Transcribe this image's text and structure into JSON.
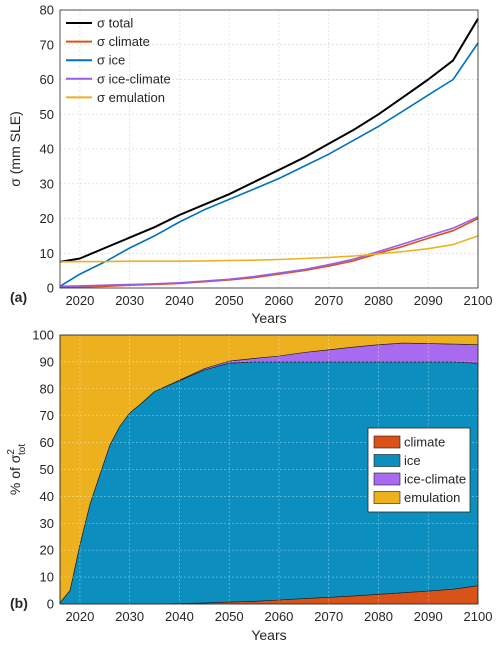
{
  "chart_data": [
    {
      "type": "line",
      "panel_label": "(a)",
      "xlabel": "Years",
      "ylabel": "σ (mm SLE)",
      "xlim": [
        2016,
        2100
      ],
      "ylim": [
        0,
        80
      ],
      "xticks": [
        2020,
        2030,
        2040,
        2050,
        2060,
        2070,
        2080,
        2090,
        2100
      ],
      "yticks": [
        0,
        10,
        20,
        30,
        40,
        50,
        60,
        70,
        80
      ],
      "grid": true,
      "legend_position": "top-left",
      "x": [
        2016,
        2020,
        2025,
        2030,
        2035,
        2040,
        2045,
        2050,
        2055,
        2060,
        2065,
        2070,
        2075,
        2080,
        2085,
        2090,
        2095,
        2100
      ],
      "series": [
        {
          "name": "σ total",
          "color": "#000000",
          "values": [
            7.5,
            8.5,
            11.5,
            14.5,
            17.5,
            21,
            24,
            27,
            30.5,
            34,
            37.5,
            41.5,
            45.5,
            50,
            55,
            60,
            65.5,
            77.5
          ]
        },
        {
          "name": "σ climate",
          "color": "#d95319",
          "values": [
            0.2,
            0.3,
            0.5,
            0.8,
            1.0,
            1.3,
            1.8,
            2.3,
            3.0,
            4.0,
            5.0,
            6.3,
            7.8,
            10.0,
            12.0,
            14.3,
            16.5,
            20.0
          ]
        },
        {
          "name": "σ ice",
          "color": "#0072bd",
          "values": [
            0.5,
            4.0,
            7.5,
            11.5,
            15.0,
            19.0,
            22.5,
            25.5,
            28.5,
            31.5,
            35.0,
            38.5,
            42.5,
            46.5,
            51.0,
            55.5,
            60.0,
            70.5
          ]
        },
        {
          "name": "σ ice-climate",
          "color": "#9b5de5",
          "values": [
            0.5,
            0.6,
            0.8,
            1.0,
            1.2,
            1.5,
            2.0,
            2.5,
            3.3,
            4.3,
            5.3,
            6.7,
            8.3,
            10.5,
            12.7,
            15.0,
            17.2,
            20.5
          ]
        },
        {
          "name": "σ emulation",
          "color": "#edb120",
          "values": [
            7.5,
            7.6,
            7.6,
            7.7,
            7.7,
            7.7,
            7.8,
            7.9,
            8.0,
            8.2,
            8.5,
            8.8,
            9.2,
            9.8,
            10.5,
            11.3,
            12.5,
            15.0
          ]
        }
      ]
    },
    {
      "type": "area",
      "stacked": true,
      "panel_label": "(b)",
      "xlabel": "Years",
      "ylabel": "% of σ²tot",
      "ylabel_main": "% of σ",
      "ylabel_sup": "2",
      "ylabel_sub": "tot",
      "xlim": [
        2016,
        2100
      ],
      "ylim": [
        0,
        100
      ],
      "xticks": [
        2020,
        2030,
        2040,
        2050,
        2060,
        2070,
        2080,
        2090,
        2100
      ],
      "yticks": [
        0,
        10,
        20,
        30,
        40,
        50,
        60,
        70,
        80,
        90,
        100
      ],
      "grid": true,
      "legend_position": "right",
      "x": [
        2016,
        2018,
        2020,
        2022,
        2024,
        2026,
        2028,
        2030,
        2032,
        2035,
        2040,
        2045,
        2050,
        2055,
        2060,
        2065,
        2070,
        2075,
        2080,
        2085,
        2090,
        2095,
        2100
      ],
      "series": [
        {
          "name": "climate",
          "color": "#d95319",
          "values": [
            0,
            0,
            0,
            0,
            0,
            0,
            0,
            0,
            0,
            0,
            0.2,
            0.4,
            0.7,
            1.0,
            1.5,
            2.0,
            2.5,
            3.0,
            3.6,
            4.2,
            4.8,
            5.5,
            6.8
          ]
        },
        {
          "name": "ice",
          "color": "#0c8fbf",
          "values": [
            0.5,
            5,
            22,
            37,
            48,
            59,
            66,
            71,
            74,
            79,
            82.8,
            86.6,
            88.8,
            89.0,
            88.5,
            88.0,
            87.5,
            87.0,
            86.4,
            85.8,
            85.2,
            84.5,
            82.7
          ]
        },
        {
          "name": "ice-climate",
          "color": "#a86bf0",
          "values": [
            0,
            0,
            0,
            0,
            0,
            0,
            0,
            0,
            0,
            0,
            0.2,
            0.5,
            0.8,
            1.3,
            2.2,
            3.5,
            4.5,
            5.5,
            6.4,
            7.0,
            6.8,
            6.6,
            6.9
          ]
        },
        {
          "name": "emulation",
          "color": "#edb120",
          "values": [
            99.5,
            95,
            78,
            63,
            52,
            41,
            34,
            29,
            26,
            21,
            16.8,
            12.5,
            9.7,
            8.7,
            7.8,
            6.5,
            5.5,
            4.5,
            3.6,
            3.0,
            3.2,
            3.4,
            3.6
          ]
        }
      ]
    }
  ]
}
